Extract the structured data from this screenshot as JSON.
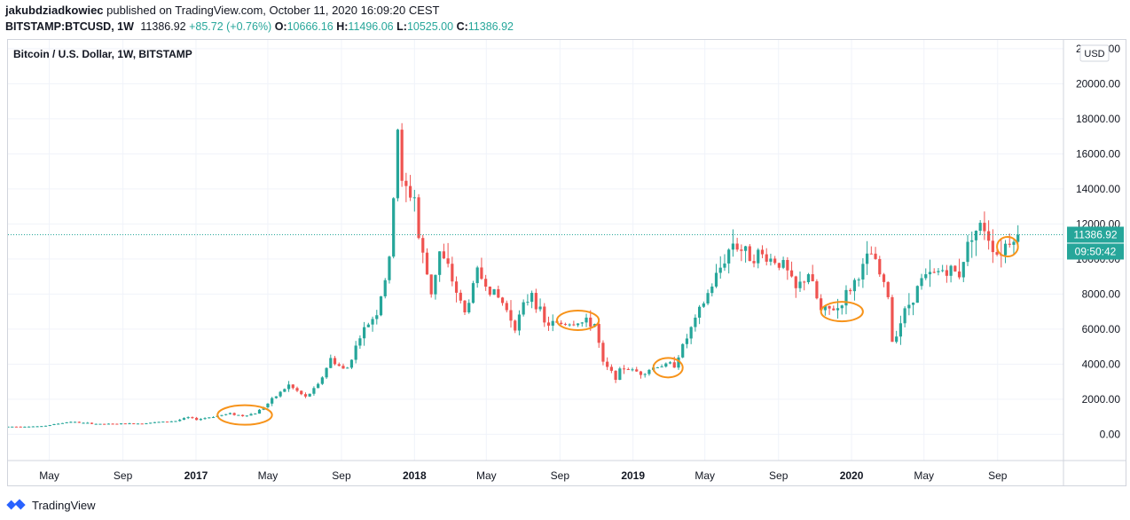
{
  "header": {
    "author": "jakubdziadkowiec",
    "published_text": "published on TradingView.com, October 11, 2020 16:09:20 CEST",
    "symbol": "BITSTAMP:BTCUSD, 1W",
    "last": "11386.92",
    "change": "+85.72 (+0.76%)",
    "o_label": "O:",
    "o_value": "10666.16",
    "h_label": "H:",
    "h_value": "11496.06",
    "l_label": "L:",
    "l_value": "10525.00",
    "c_label": "C:",
    "c_value": "11386.92"
  },
  "footer": {
    "brand": "TradingView",
    "logo_icon": "tradingview-logo-icon"
  },
  "colors": {
    "up": "#26a69a",
    "down": "#ef5350",
    "annotation": "#f7931a",
    "price_line": "#26a69a"
  },
  "chart_data": {
    "type": "candlestick",
    "title": "Bitcoin / U.S. Dollar, 1W, BITSTAMP",
    "currency": "USD",
    "ylim": [
      -1500,
      22500
    ],
    "y_ticks": [
      "22000.00",
      "20000.00",
      "18000.00",
      "16000.00",
      "14000.00",
      "12000.00",
      "10000.00",
      "8000.00",
      "6000.00",
      "4000.00",
      "2000.00",
      "0.00"
    ],
    "y_tick_values": [
      22000,
      20000,
      18000,
      16000,
      14000,
      12000,
      10000,
      8000,
      6000,
      4000,
      2000,
      0
    ],
    "x_ticks": [
      {
        "label": "May",
        "date": "2016-05-01",
        "bold": false
      },
      {
        "label": "Sep",
        "date": "2016-09-01",
        "bold": false
      },
      {
        "label": "2017",
        "date": "2017-01-01",
        "bold": true
      },
      {
        "label": "May",
        "date": "2017-05-01",
        "bold": false
      },
      {
        "label": "Sep",
        "date": "2017-09-01",
        "bold": false
      },
      {
        "label": "2018",
        "date": "2018-01-01",
        "bold": true
      },
      {
        "label": "May",
        "date": "2018-05-01",
        "bold": false
      },
      {
        "label": "Sep",
        "date": "2018-09-01",
        "bold": false
      },
      {
        "label": "2019",
        "date": "2019-01-01",
        "bold": true
      },
      {
        "label": "May",
        "date": "2019-05-01",
        "bold": false
      },
      {
        "label": "Sep",
        "date": "2019-09-01",
        "bold": false
      },
      {
        "label": "2020",
        "date": "2020-01-01",
        "bold": true
      },
      {
        "label": "May",
        "date": "2020-05-01",
        "bold": false
      },
      {
        "label": "Sep",
        "date": "2020-09-01",
        "bold": false
      }
    ],
    "x_range": [
      "2016-02-22",
      "2020-12-20"
    ],
    "last_price_label": "11386.92",
    "countdown_label": "09:50:42",
    "price_points": [
      [
        "2016-02-22",
        430
      ],
      [
        "2016-04-25",
        455
      ],
      [
        "2016-06-13",
        720
      ],
      [
        "2016-06-27",
        660
      ],
      [
        "2016-08-01",
        580
      ],
      [
        "2016-10-03",
        615
      ],
      [
        "2016-12-05",
        760
      ],
      [
        "2016-12-26",
        960
      ],
      [
        "2017-01-09",
        840
      ],
      [
        "2017-03-06",
        1180
      ],
      [
        "2017-03-27",
        1050
      ],
      [
        "2017-04-17",
        1200
      ],
      [
        "2017-05-08",
        1750
      ],
      [
        "2017-05-29",
        2400
      ],
      [
        "2017-06-12",
        2800
      ],
      [
        "2017-07-10",
        2100
      ],
      [
        "2017-07-31",
        2800
      ],
      [
        "2017-08-21",
        4300
      ],
      [
        "2017-09-11",
        3700
      ],
      [
        "2017-09-18",
        3800
      ],
      [
        "2017-10-09",
        5600
      ],
      [
        "2017-11-06",
        7000
      ],
      [
        "2017-11-27",
        9800
      ],
      [
        "2017-12-11",
        17500
      ],
      [
        "2017-12-18",
        14200
      ],
      [
        "2017-12-25",
        13900
      ],
      [
        "2018-01-08",
        13600
      ],
      [
        "2018-01-15",
        11200
      ],
      [
        "2018-02-05",
        8100
      ],
      [
        "2018-02-19",
        10400
      ],
      [
        "2018-03-05",
        9400
      ],
      [
        "2018-04-02",
        6900
      ],
      [
        "2018-04-23",
        9300
      ],
      [
        "2018-05-07",
        8600
      ],
      [
        "2018-06-04",
        7500
      ],
      [
        "2018-06-25",
        6200
      ],
      [
        "2018-07-23",
        8200
      ],
      [
        "2018-08-13",
        6300
      ],
      [
        "2018-09-03",
        6300
      ],
      [
        "2018-10-08",
        6400
      ],
      [
        "2018-11-05",
        6300
      ],
      [
        "2018-11-19",
        4000
      ],
      [
        "2018-12-10",
        3300
      ],
      [
        "2018-12-24",
        3800
      ],
      [
        "2019-01-21",
        3500
      ],
      [
        "2019-02-18",
        3900
      ],
      [
        "2019-03-18",
        4000
      ],
      [
        "2019-04-01",
        5000
      ],
      [
        "2019-05-13",
        8000
      ],
      [
        "2019-06-24",
        11000
      ],
      [
        "2019-07-15",
        10300
      ],
      [
        "2019-08-12",
        10200
      ],
      [
        "2019-09-16",
        9700
      ],
      [
        "2019-10-07",
        8200
      ],
      [
        "2019-10-28",
        9200
      ],
      [
        "2019-11-18",
        7000
      ],
      [
        "2019-12-16",
        7200
      ],
      [
        "2020-01-13",
        8700
      ],
      [
        "2020-02-10",
        10300
      ],
      [
        "2020-03-09",
        7900
      ],
      [
        "2020-03-16",
        5300
      ],
      [
        "2020-04-06",
        7000
      ],
      [
        "2020-05-04",
        8800
      ],
      [
        "2020-06-08",
        9400
      ],
      [
        "2020-07-06",
        9200
      ],
      [
        "2020-07-27",
        11600
      ],
      [
        "2020-08-17",
        11800
      ],
      [
        "2020-09-07",
        10300
      ],
      [
        "2020-10-05",
        11387
      ]
    ],
    "annotations": [
      {
        "type": "ellipse",
        "start": "2017-02-06",
        "end": "2017-05-08",
        "value": 1100
      },
      {
        "type": "ellipse",
        "start": "2018-08-27",
        "end": "2018-11-05",
        "value": 6500
      },
      {
        "type": "ellipse",
        "start": "2019-02-04",
        "end": "2019-03-25",
        "value": 3800
      },
      {
        "type": "ellipse",
        "start": "2019-11-11",
        "end": "2020-01-20",
        "value": 7000
      },
      {
        "type": "ellipse",
        "start": "2020-08-31",
        "end": "2020-10-05",
        "value": 10700
      }
    ]
  }
}
